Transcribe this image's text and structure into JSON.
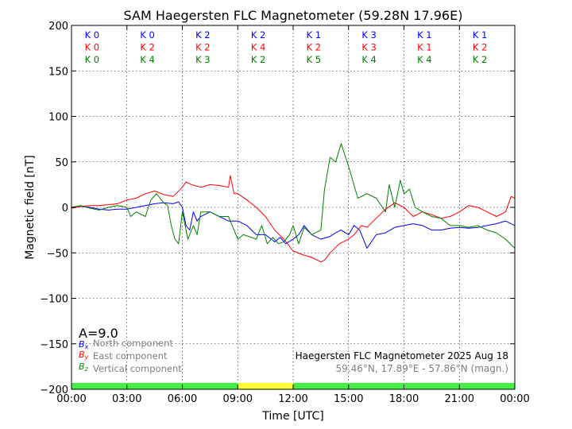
{
  "chart_data": {
    "type": "line",
    "title": "SAM Haegersten FLC Magnetometer (59.28N 17.96E)",
    "xlabel": "Time [UTC]",
    "ylabel": "Magnetic field [nT]",
    "x_range_hours": [
      0,
      24
    ],
    "ylim": [
      -200,
      200
    ],
    "grid": true,
    "x_ticks": [
      "00:00",
      "03:00",
      "06:00",
      "09:00",
      "12:00",
      "15:00",
      "18:00",
      "21:00",
      "00:00"
    ],
    "y_ticks": [
      "200",
      "150",
      "100",
      "50",
      "0",
      "−50",
      "−100",
      "−150",
      "−200"
    ],
    "k_indices": {
      "blue": [
        "K 0",
        "K 0",
        "K 2",
        "K 2",
        "K 1",
        "K 3",
        "K 1",
        "K 1"
      ],
      "red": [
        "K 0",
        "K 2",
        "K 2",
        "K 4",
        "K 2",
        "K 3",
        "K 1",
        "K 2"
      ],
      "green": [
        "K 0",
        "K 4",
        "K 3",
        "K 2",
        "K 5",
        "K 4",
        "K 4",
        "K 2"
      ]
    },
    "a_index": "A=9.0",
    "legend": {
      "placement": "bottom-left",
      "items": [
        {
          "symbol": "Bx",
          "label": "North component",
          "color": "#0000ff"
        },
        {
          "symbol": "By",
          "label": "East component",
          "color": "#ff0000"
        },
        {
          "symbol": "Bz",
          "label": "Vertical component",
          "color": "#008000"
        }
      ]
    },
    "info_line1": "Haegersten FLC Magnetometer 2025 Aug 18",
    "info_line2": "59.46°N, 17.89°E - 57.86°N (magn.)",
    "status_bar": [
      {
        "from": 0,
        "to": 9,
        "color": "#44ee44"
      },
      {
        "from": 9,
        "to": 12,
        "color": "#ffff33"
      },
      {
        "from": 12,
        "to": 24,
        "color": "#44ee44"
      }
    ],
    "series": [
      {
        "color": "#0000ff",
        "x": [
          0,
          0.5,
          1,
          1.5,
          2,
          2.5,
          3,
          3.5,
          4,
          4.5,
          5,
          5.5,
          5.8,
          6,
          6.2,
          6.4,
          6.6,
          6.8,
          7,
          7.5,
          8,
          8.5,
          9,
          9.5,
          10,
          10.5,
          11,
          11.3,
          11.6,
          12,
          12.3,
          12.6,
          13,
          13.5,
          14,
          14.3,
          14.6,
          15,
          15.3,
          15.6,
          16,
          16.5,
          17,
          17.5,
          18,
          18.5,
          19,
          19.5,
          20,
          20.5,
          21,
          21.5,
          22,
          22.5,
          23,
          23.5,
          24
        ],
        "y": [
          0,
          1,
          0,
          -2,
          -3,
          -2,
          -2,
          0,
          2,
          4,
          5,
          4,
          6,
          0,
          -20,
          -25,
          -5,
          -15,
          -10,
          -5,
          -10,
          -15,
          -15,
          -20,
          -30,
          -30,
          -38,
          -33,
          -40,
          -35,
          -30,
          -20,
          -30,
          -35,
          -32,
          -28,
          -25,
          -30,
          -20,
          -25,
          -45,
          -30,
          -28,
          -22,
          -20,
          -18,
          -20,
          -25,
          -25,
          -23,
          -22,
          -23,
          -22,
          -20,
          -18,
          -15,
          -20
        ]
      },
      {
        "color": "#ff0000",
        "x": [
          0,
          0.5,
          1,
          1.5,
          2,
          2.5,
          3,
          3.5,
          4,
          4.5,
          5,
          5.5,
          6,
          6.2,
          6.5,
          7,
          7.5,
          8,
          8.5,
          8.6,
          8.8,
          9,
          9.5,
          10,
          10.5,
          11,
          11.5,
          12,
          12.5,
          13,
          13.5,
          13.7,
          14,
          14.5,
          15,
          15.3,
          15.7,
          16,
          16.5,
          17,
          17.5,
          18,
          18.5,
          19,
          19.5,
          20,
          20.5,
          21,
          21.5,
          22,
          22.5,
          23,
          23.5,
          23.8,
          24
        ],
        "y": [
          -1,
          1,
          2,
          2,
          3,
          4,
          8,
          10,
          15,
          18,
          14,
          12,
          22,
          28,
          25,
          22,
          25,
          24,
          22,
          35,
          15,
          15,
          8,
          0,
          -10,
          -25,
          -35,
          -48,
          -52,
          -55,
          -60,
          -58,
          -50,
          -40,
          -35,
          -30,
          -20,
          -22,
          -12,
          -2,
          5,
          0,
          -10,
          -5,
          -8,
          -12,
          -10,
          -5,
          2,
          0,
          -5,
          -10,
          -5,
          12,
          10
        ]
      },
      {
        "color": "#008000",
        "x": [
          0,
          0.5,
          1,
          1.5,
          2,
          2.5,
          3,
          3.2,
          3.5,
          4,
          4.3,
          4.6,
          5,
          5.2,
          5.4,
          5.6,
          5.8,
          6,
          6.3,
          6.6,
          6.8,
          7,
          7.5,
          8,
          8.5,
          8.8,
          9,
          9.3,
          9.6,
          10,
          10.3,
          10.6,
          10.9,
          11.2,
          11.5,
          11.8,
          12,
          12.3,
          12.6,
          13,
          13.5,
          13.7,
          14,
          14.3,
          14.6,
          15,
          15.5,
          16,
          16.5,
          17,
          17.2,
          17.5,
          17.8,
          18,
          18.3,
          18.6,
          19,
          19.5,
          20,
          20.5,
          21,
          21.5,
          22,
          22.5,
          23,
          23.5,
          24
        ],
        "y": [
          0,
          2,
          -1,
          -3,
          0,
          2,
          0,
          -10,
          -5,
          -10,
          8,
          15,
          5,
          2,
          -20,
          -35,
          -40,
          -5,
          -35,
          -20,
          -30,
          -5,
          -5,
          -10,
          -10,
          -25,
          -35,
          -30,
          -32,
          -35,
          -20,
          -40,
          -33,
          -40,
          -38,
          -30,
          -20,
          -40,
          -22,
          -30,
          -25,
          20,
          55,
          50,
          70,
          45,
          10,
          15,
          10,
          -5,
          25,
          0,
          30,
          15,
          20,
          0,
          -5,
          -10,
          -12,
          -20,
          -20,
          -22,
          -20,
          -25,
          -28,
          -35,
          -45
        ]
      }
    ]
  }
}
